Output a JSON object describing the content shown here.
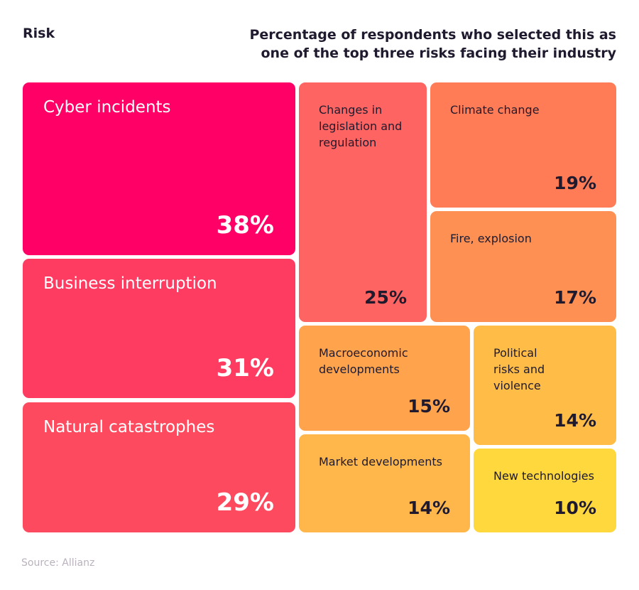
{
  "header": {
    "left_label": "Risk",
    "right_line1": "Percentage of respondents who selected this as",
    "right_line2": "one of the top three risks facing their industry"
  },
  "chart_data": {
    "type": "treemap",
    "unit": "%",
    "items": [
      {
        "label": "Cyber incidents",
        "value": 38,
        "display": "38%",
        "color": "#ff0066",
        "text_color": "#ffffff",
        "style": "big"
      },
      {
        "label": "Business interruption",
        "value": 31,
        "display": "31%",
        "color": "#fe3c62",
        "text_color": "#ffffff",
        "style": "big"
      },
      {
        "label": "Natural catastrophes",
        "value": 29,
        "display": "29%",
        "color": "#fe4a5f",
        "text_color": "#ffffff",
        "style": "big"
      },
      {
        "label": "Changes in legislation and regulation",
        "lines": [
          "Changes in",
          "legislation and",
          "regulation"
        ],
        "value": 25,
        "display": "25%",
        "color": "#fe6461",
        "text_color": "#1f1a2e",
        "style": "small"
      },
      {
        "label": "Climate change",
        "value": 19,
        "display": "19%",
        "color": "#ff7c57",
        "text_color": "#1f1a2e",
        "style": "small"
      },
      {
        "label": "Fire, explosion",
        "value": 17,
        "display": "17%",
        "color": "#ff9054",
        "text_color": "#1f1a2e",
        "style": "small"
      },
      {
        "label": "Macroeconomic developments",
        "lines": [
          "Macroeconomic",
          "developments"
        ],
        "value": 15,
        "display": "15%",
        "color": "#ffa34c",
        "text_color": "#1f1a2e",
        "style": "small"
      },
      {
        "label": "Political risks and violence",
        "lines": [
          "Political",
          "risks and",
          "violence"
        ],
        "value": 14,
        "display": "14%",
        "color": "#ffbd48",
        "text_color": "#1f1a2e",
        "style": "small"
      },
      {
        "label": "Market developments",
        "value": 14,
        "display": "14%",
        "color": "#ffb64a",
        "text_color": "#1f1a2e",
        "style": "small"
      },
      {
        "label": "New technologies",
        "value": 10,
        "display": "10%",
        "color": "#ffd83d",
        "text_color": "#1f1a2e",
        "style": "small"
      }
    ]
  },
  "source": "Source: Allianz"
}
